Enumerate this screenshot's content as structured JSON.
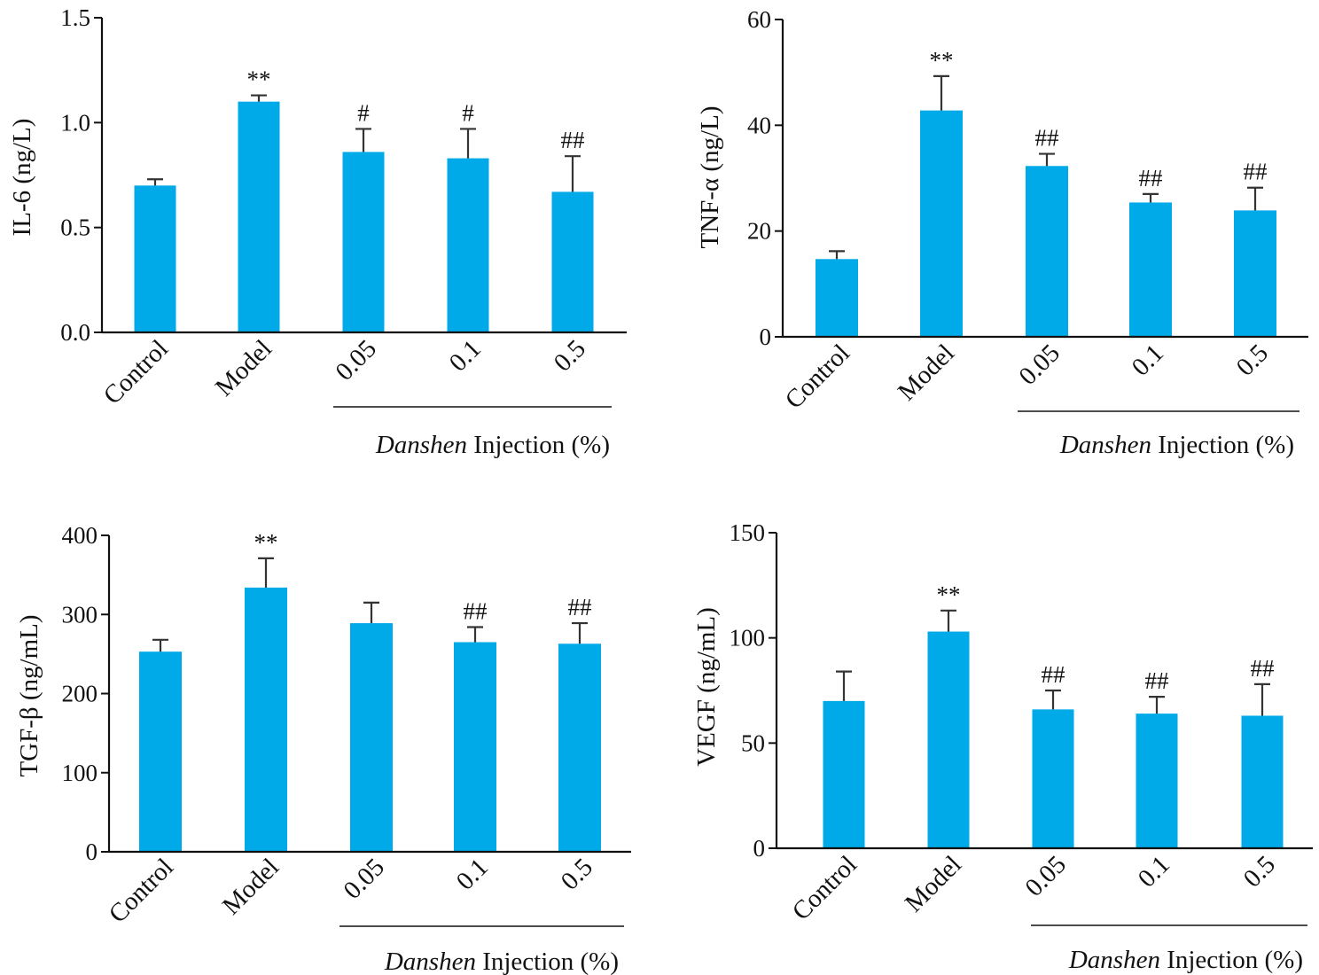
{
  "colors": {
    "bar": "#00a9e8",
    "axis": "#111111"
  },
  "chart_data": [
    {
      "type": "bar",
      "ylabel": "IL-6 (ng/L)",
      "categories": [
        "Control",
        "Model",
        "0.05",
        "0.1",
        "0.5"
      ],
      "values": [
        0.7,
        1.1,
        0.86,
        0.83,
        0.67
      ],
      "errors": [
        0.03,
        0.03,
        0.11,
        0.14,
        0.17
      ],
      "annotations": [
        "",
        "**",
        "#",
        "#",
        "##"
      ],
      "ylim": [
        0,
        1.5
      ],
      "yticks": [
        0.0,
        0.5,
        1.0,
        1.5
      ],
      "ytick_labels": [
        "0.0",
        "0.5",
        "1.0",
        "1.5"
      ],
      "group_caption": {
        "italic": "Danshen",
        "rest": " Injection (%)"
      }
    },
    {
      "type": "bar",
      "ylabel": "TNF-α (ng/L)",
      "categories": [
        "Control",
        "Model",
        "0.05",
        "0.1",
        "0.5"
      ],
      "values": [
        14.7,
        42.8,
        32.3,
        25.4,
        23.9
      ],
      "errors": [
        1.5,
        6.5,
        2.3,
        1.6,
        4.3
      ],
      "annotations": [
        "",
        "**",
        "##",
        "##",
        "##"
      ],
      "ylim": [
        0,
        60
      ],
      "yticks": [
        0,
        20,
        40,
        60
      ],
      "ytick_labels": [
        "0",
        "20",
        "40",
        "60"
      ],
      "group_caption": {
        "italic": "Danshen",
        "rest": " Injection (%)"
      }
    },
    {
      "type": "bar",
      "ylabel": "TGF-β (ng/mL)",
      "categories": [
        "Control",
        "Model",
        "0.05",
        "0.1",
        "0.5"
      ],
      "values": [
        253,
        334,
        289,
        265,
        263
      ],
      "errors": [
        15,
        37,
        26,
        19,
        26
      ],
      "annotations": [
        "",
        "**",
        "",
        "##",
        "##"
      ],
      "ylim": [
        0,
        400
      ],
      "yticks": [
        0,
        100,
        200,
        300,
        400
      ],
      "ytick_labels": [
        "0",
        "100",
        "200",
        "300",
        "400"
      ],
      "group_caption": {
        "italic": "Danshen",
        "rest": " Injection (%)"
      }
    },
    {
      "type": "bar",
      "ylabel": "VEGF (ng/mL)",
      "categories": [
        "Control",
        "Model",
        "0.05",
        "0.1",
        "0.5"
      ],
      "values": [
        70,
        103,
        66,
        64,
        63
      ],
      "errors": [
        14,
        10,
        9,
        8,
        15
      ],
      "annotations": [
        "",
        "**",
        "##",
        "##",
        "##"
      ],
      "ylim": [
        0,
        150
      ],
      "yticks": [
        0,
        50,
        100,
        150
      ],
      "ytick_labels": [
        "0",
        "50",
        "100",
        "150"
      ],
      "group_caption": {
        "italic": "Danshen",
        "rest": " Injection (%)"
      }
    }
  ]
}
